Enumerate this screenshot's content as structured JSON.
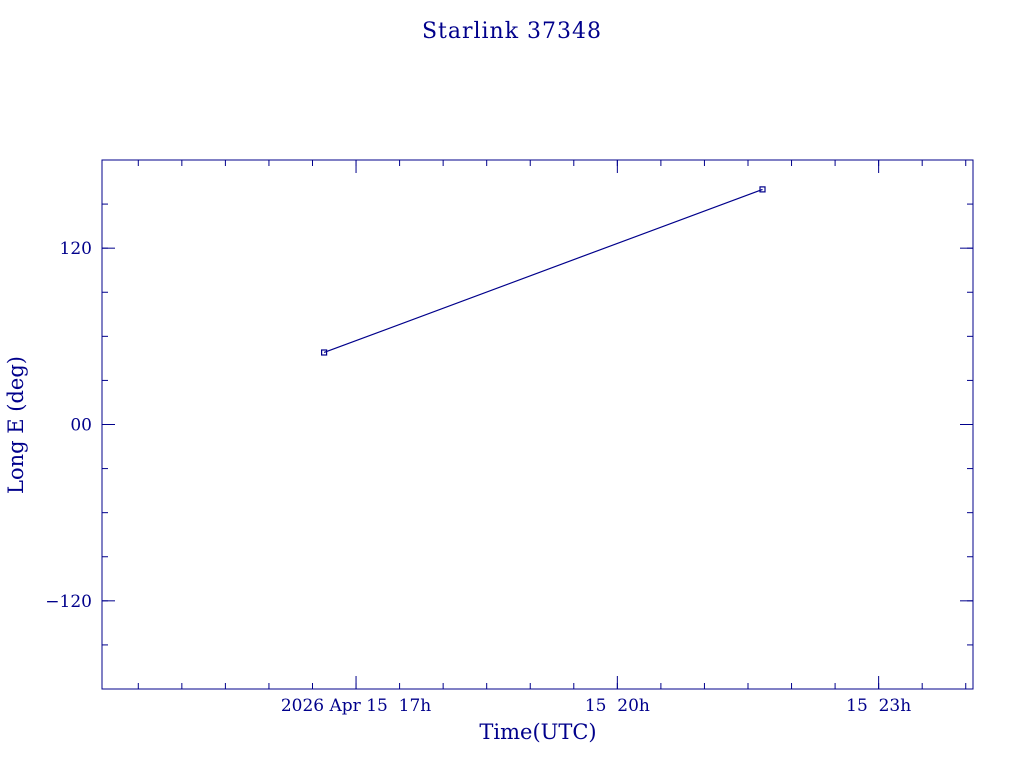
{
  "chart_data": {
    "type": "line",
    "title": "Starlink 37348",
    "xlabel": "Time(UTC)",
    "ylabel": "Long E (deg)",
    "x_tick_labels": [
      {
        "t": "2026-04-15T17:00",
        "label": "2026 Apr 15  17h"
      },
      {
        "t": "2026-04-15T20:00",
        "label": "15  20h"
      },
      {
        "t": "2026-04-15T23:00",
        "label": "15  23h"
      }
    ],
    "y_tick_labels": [
      {
        "v": 120,
        "label": "120"
      },
      {
        "v": 0,
        "label": "00"
      },
      {
        "v": -120,
        "label": "−120"
      }
    ],
    "xlim": [
      "2026-04-15T14:05",
      "2026-04-16T00:05"
    ],
    "ylim": [
      -180,
      180
    ],
    "x_minor_step_minutes": 30,
    "y_minor_step": 30,
    "grid": false,
    "series": [
      {
        "x": [
          "2026-04-15T16:38",
          "2026-04-15T21:40"
        ],
        "y": [
          49,
          160
        ]
      }
    ],
    "color": "#00008b"
  }
}
